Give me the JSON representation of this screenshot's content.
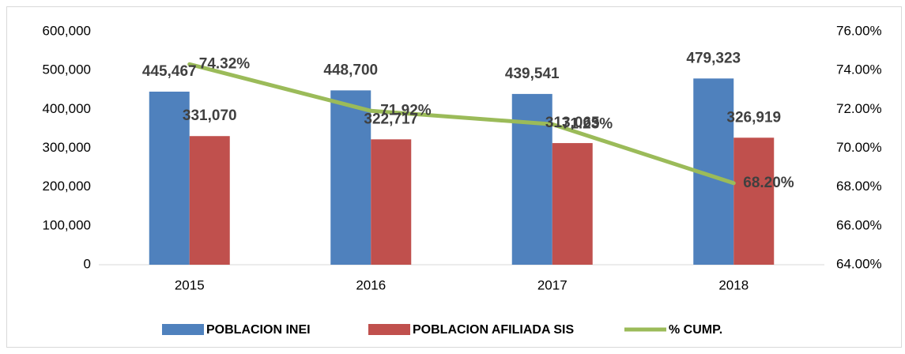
{
  "chart_data": {
    "type": "bar-line",
    "categories": [
      "2015",
      "2016",
      "2017",
      "2018"
    ],
    "series": [
      {
        "name": "POBLACION INEI",
        "type": "bar",
        "color": "#4f81bd",
        "values": [
          445467,
          448700,
          439541,
          479323
        ],
        "value_labels": [
          "445,467",
          "448,700",
          "439,541",
          "479,323"
        ]
      },
      {
        "name": "POBLACION AFILIADA SIS",
        "type": "bar",
        "color": "#c0504d",
        "values": [
          331070,
          322717,
          313065,
          326919
        ],
        "value_labels": [
          "331,070",
          "322,717",
          "313,065",
          "326,919"
        ]
      },
      {
        "name": "% CUMP.",
        "type": "line",
        "axis": "y2",
        "color": "#9bbb59",
        "values": [
          74.32,
          71.92,
          71.23,
          68.2
        ],
        "value_labels": [
          "74.32%",
          "71.92%",
          "71.23%",
          "68.20%"
        ]
      }
    ],
    "ylim": [
      0,
      600000
    ],
    "yticks": [
      0,
      {
        "value": 100000,
        "label": "100,000"
      },
      {
        "value": 200000,
        "label": "200,000"
      },
      {
        "value": 300000,
        "label": "300,000"
      },
      {
        "value": 400000,
        "label": "400,000"
      },
      {
        "value": 500000,
        "label": "500,000"
      },
      {
        "value": 600000,
        "label": "600,000"
      }
    ],
    "y2lim": [
      64,
      76
    ],
    "y2ticks": [
      {
        "value": 64,
        "label": "64.00%"
      },
      {
        "value": 66,
        "label": "66.00%"
      },
      {
        "value": 68,
        "label": "68.00%"
      },
      {
        "value": 70,
        "label": "70.00%"
      },
      {
        "value": 72,
        "label": "72.00%"
      },
      {
        "value": 74,
        "label": "74.00%"
      },
      {
        "value": 76,
        "label": "76.00%"
      }
    ],
    "grid": false,
    "legend": "bottom"
  }
}
